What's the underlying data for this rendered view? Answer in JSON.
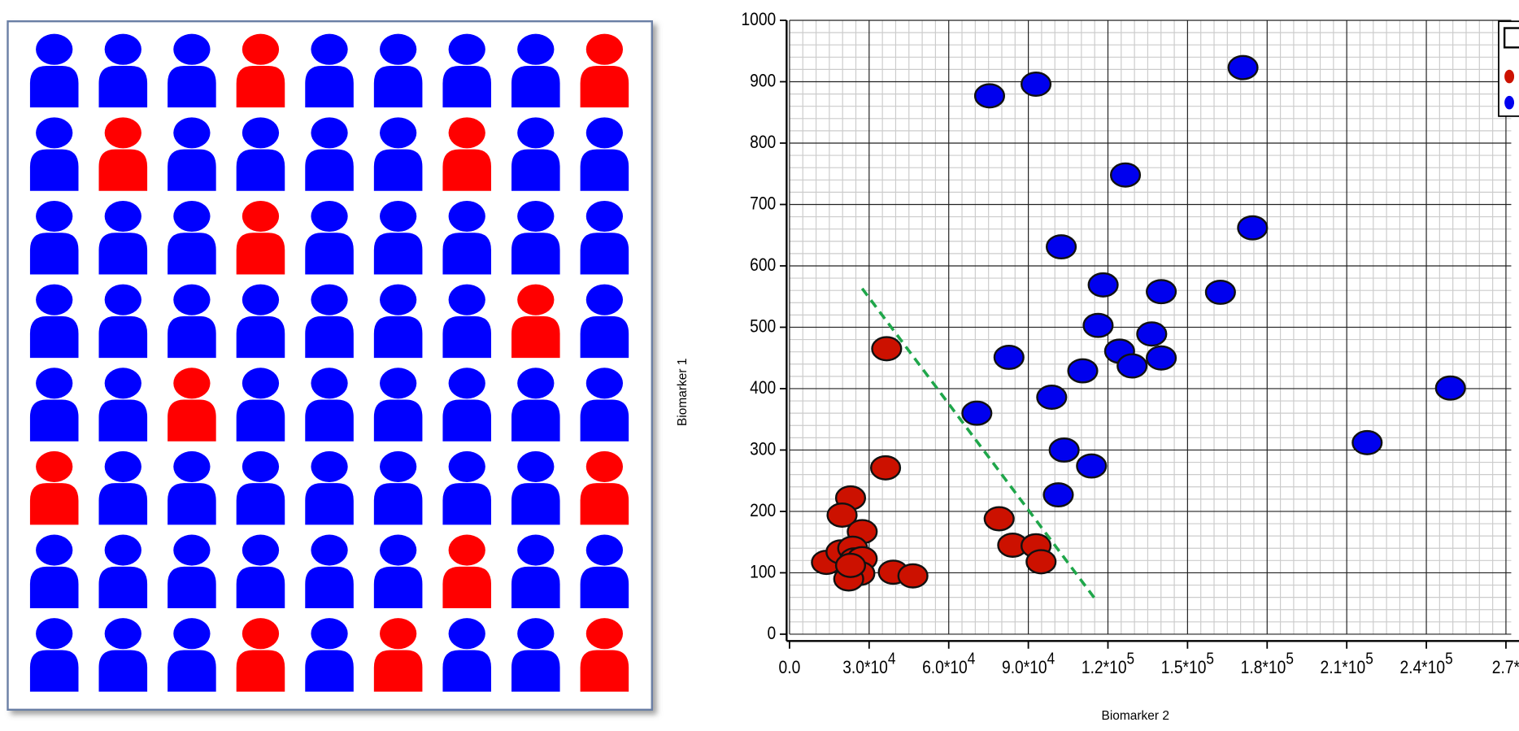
{
  "chart_data": [
    {
      "type": "pictograph",
      "columns": 9,
      "colors": {
        "r": "#ff0000",
        "b": "#0000ff"
      },
      "cells": [
        "b",
        "b",
        "b",
        "r",
        "b",
        "b",
        "b",
        "b",
        "r",
        "b",
        "r",
        "b",
        "b",
        "b",
        "b",
        "r",
        "b",
        "b",
        "b",
        "b",
        "b",
        "r",
        "b",
        "b",
        "b",
        "b",
        "b",
        "b",
        "b",
        "b",
        "b",
        "b",
        "b",
        "b",
        "r",
        "b",
        "b",
        "b",
        "r",
        "b",
        "b",
        "b",
        "b",
        "b",
        "b",
        "r",
        "b",
        "b",
        "b",
        "b",
        "b",
        "b",
        "b",
        "r",
        "b",
        "b",
        "b",
        "b",
        "b",
        "b",
        "r",
        "b",
        "b",
        "b",
        "b",
        "b",
        "r",
        "b",
        "r",
        "b",
        "b",
        "r"
      ]
    },
    {
      "type": "scatter",
      "x_label": "Biomarker 2",
      "y_label": "Biomarker 1",
      "xlim": [
        0,
        272000
      ],
      "ylim": [
        0,
        1000
      ],
      "xticks": [
        {
          "value": 0,
          "label": "0.0",
          "exponent": ""
        },
        {
          "value": 30000,
          "label": "3.0*10",
          "exponent": "4"
        },
        {
          "value": 60000,
          "label": "6.0*10",
          "exponent": "4"
        },
        {
          "value": 90000,
          "label": "9.0*10",
          "exponent": "4"
        },
        {
          "value": 120000,
          "label": "1.2*10",
          "exponent": "5"
        },
        {
          "value": 150000,
          "label": "1.5*10",
          "exponent": "5"
        },
        {
          "value": 180000,
          "label": "1.8*10",
          "exponent": "5"
        },
        {
          "value": 210000,
          "label": "2.1*10",
          "exponent": "5"
        },
        {
          "value": 240000,
          "label": "2.4*10",
          "exponent": "5"
        },
        {
          "value": 270000,
          "label": "2.7*",
          "exponent": ""
        }
      ],
      "yticks": [
        0,
        100,
        200,
        300,
        400,
        500,
        600,
        700,
        800,
        900,
        1000
      ],
      "grid": true,
      "legend": "upper right",
      "series": [
        {
          "color": "#cc1100",
          "x": [
            36600,
            36200,
            23000,
            19800,
            79000,
            84100,
            92900,
            94800,
            27400,
            13900,
            19400,
            23800,
            24500,
            27400,
            23800,
            26500,
            22300,
            39100,
            46500,
            23000
          ],
          "values": [
            465,
            271,
            222,
            194,
            188,
            145,
            144,
            118,
            167,
            117,
            134,
            140,
            121,
            123,
            106,
            99,
            90,
            101,
            95,
            112
          ]
        },
        {
          "color": "#0000ee",
          "x": [
            75400,
            92900,
            170900,
            126600,
            102400,
            174500,
            118200,
            140100,
            162400,
            116300,
            136500,
            124400,
            129100,
            140100,
            82700,
            110500,
            98800,
            70600,
            103500,
            113800,
            101300,
            217700,
            249100
          ],
          "values": [
            877,
            896,
            923,
            748,
            631,
            662,
            569,
            558,
            557,
            503,
            489,
            461,
            437,
            450,
            451,
            429,
            386,
            360,
            300,
            274,
            227,
            312,
            401
          ]
        }
      ]
    }
  ]
}
